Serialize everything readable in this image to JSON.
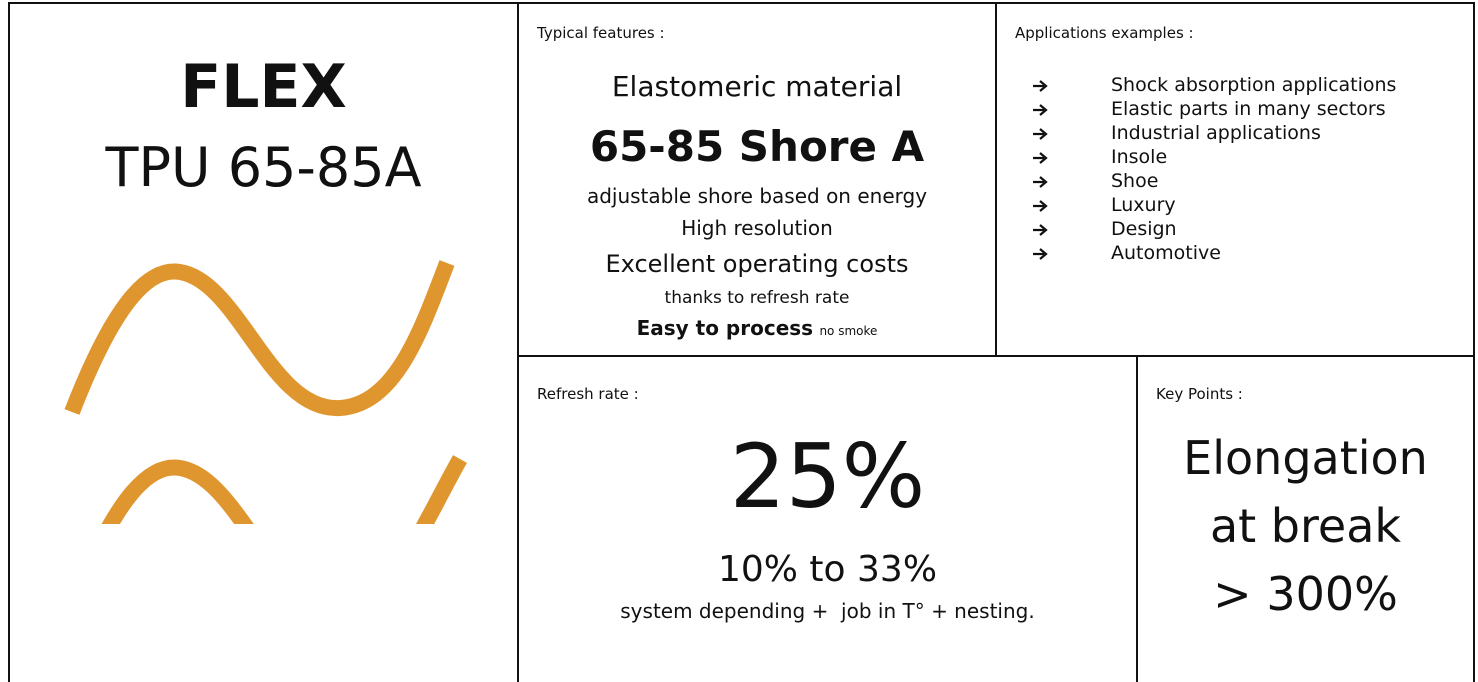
{
  "product": {
    "name": "FLEX",
    "grade": "TPU 65-85A"
  },
  "features": {
    "heading": "Typical features :",
    "lines": [
      "Elastomeric material",
      "65-85 Shore A",
      "adjustable shore based on energy",
      "High resolution",
      "Excellent operating costs",
      "thanks to refresh rate"
    ],
    "closing": {
      "main": "Easy to process",
      "note": "no smoke"
    }
  },
  "applications": {
    "heading": "Applications examples :",
    "items": [
      "Shock absorption applications",
      "Elastic parts in many sectors",
      "Industrial applications",
      "Insole",
      "Shoe",
      "Luxury",
      "Design",
      "Automotive"
    ]
  },
  "refresh": {
    "heading": "Refresh rate :",
    "value": "25%",
    "range": "10% to 33%",
    "note": "system depending +  job in T° + nesting."
  },
  "key_points": {
    "heading": "Key Points :",
    "lines": [
      "Elongation",
      "at break",
      "> 300%"
    ]
  }
}
